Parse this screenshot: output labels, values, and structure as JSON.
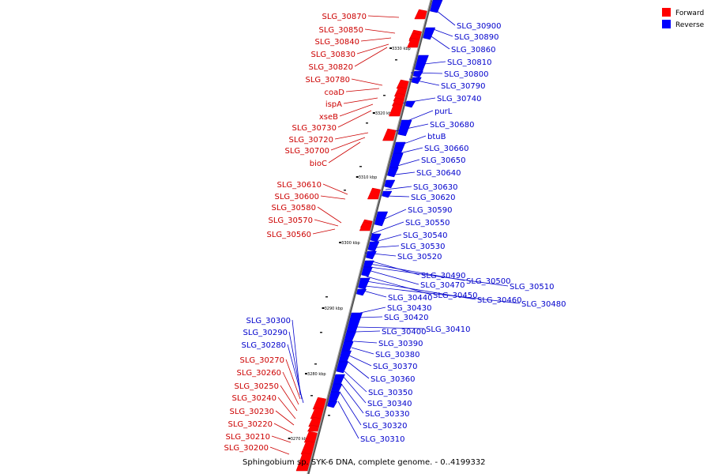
{
  "title": "Sphingobium sp. SYK-6 DNA, complete genome. - 0..4199332",
  "legend": [
    {
      "label": "Forward",
      "color": "#ff0000"
    },
    {
      "label": "Reverse",
      "color": "#0000ff"
    }
  ],
  "colors": {
    "forward": "#ff0000",
    "reverse": "#0000ff",
    "forward_line": "#cc0000",
    "reverse_line": "#0000cc",
    "axis": "#888888"
  },
  "ticks": [
    "3270 kbp",
    "3280 kbp",
    "3290 kbp",
    "3300 kbp",
    "3310 kbp",
    "3320 kbp",
    "3330 kbp"
  ],
  "forward_genes": [
    "SLG_30870",
    "SLG_30850",
    "SLG_30840",
    "SLG_30830",
    "SLG_30820",
    "SLG_30780",
    "coaD",
    "ispA",
    "xseB",
    "SLG_30730",
    "SLG_30720",
    "SLG_30700",
    "bioC",
    "SLG_30610",
    "SLG_30600",
    "SLG_30580",
    "SLG_30570",
    "SLG_30560",
    "SLG_30270",
    "SLG_30260",
    "SLG_30250",
    "SLG_30240",
    "SLG_30230",
    "SLG_30220",
    "SLG_30210",
    "SLG_30200"
  ],
  "reverse_genes": [
    "SLG_30900",
    "SLG_30890",
    "SLG_30860",
    "SLG_30810",
    "SLG_30800",
    "SLG_30790",
    "SLG_30740",
    "purL",
    "SLG_30680",
    "btuB",
    "SLG_30660",
    "SLG_30650",
    "SLG_30640",
    "SLG_30630",
    "SLG_30620",
    "SLG_30590",
    "SLG_30550",
    "SLG_30540",
    "SLG_30530",
    "SLG_30520",
    "SLG_30490",
    "SLG_30500",
    "SLG_30510",
    "SLG_30470",
    "SLG_30450",
    "SLG_30460",
    "SLG_30480",
    "SLG_30440",
    "SLG_30430",
    "SLG_30420",
    "SLG_30410",
    "SLG_30400",
    "SLG_30390",
    "SLG_30380",
    "SLG_30370",
    "SLG_30360",
    "SLG_30350",
    "SLG_30340",
    "SLG_30330",
    "SLG_30320",
    "SLG_30310",
    "SLG_30300",
    "SLG_30290",
    "SLG_30280"
  ]
}
